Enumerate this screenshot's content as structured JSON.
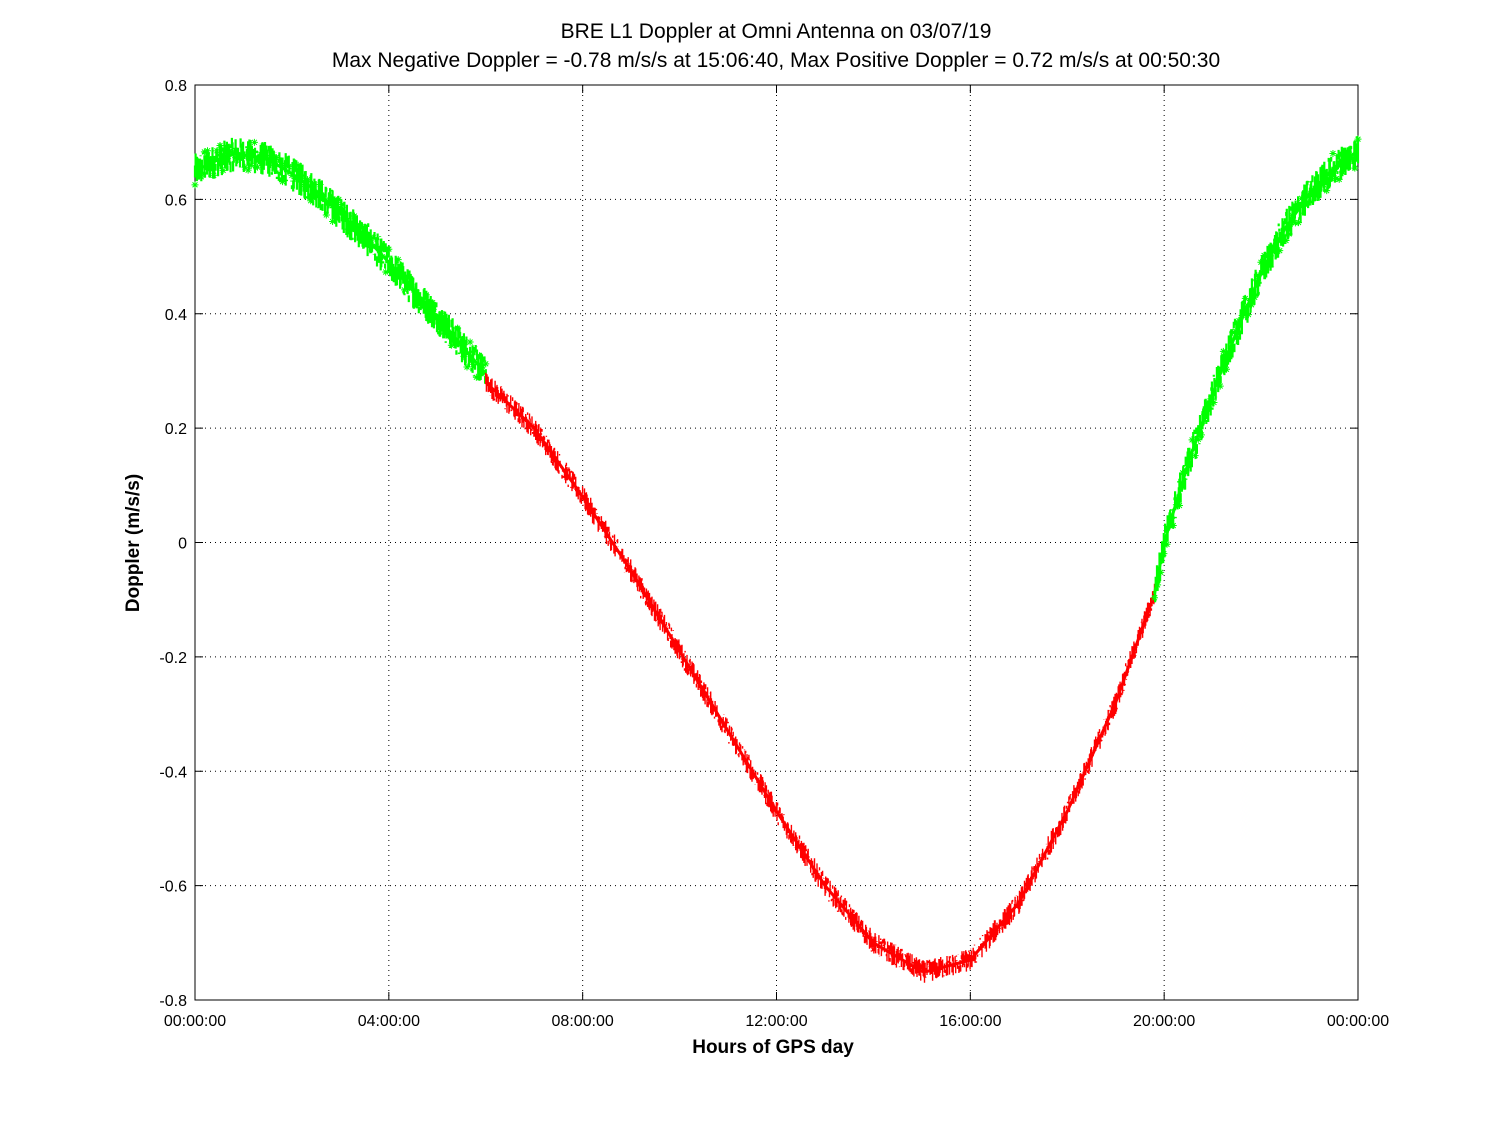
{
  "chart_data": {
    "type": "line",
    "title": "BRE  L1 Doppler at Omni Antenna on 03/07/19",
    "subtitle": "Max Negative Doppler = -0.78 m/s/s  at 15:06:40,   Max Positive Doppler = 0.72 m/s/s  at 00:50:30",
    "xlabel": "Hours of GPS day",
    "ylabel": "Doppler (m/s/s)",
    "x_unit": "hours",
    "xlim": [
      0,
      24
    ],
    "ylim": [
      -0.8,
      0.8
    ],
    "x_ticks": [
      {
        "value": 0,
        "label": "00:00:00"
      },
      {
        "value": 4,
        "label": "04:00:00"
      },
      {
        "value": 8,
        "label": "08:00:00"
      },
      {
        "value": 12,
        "label": "12:00:00"
      },
      {
        "value": 16,
        "label": "16:00:00"
      },
      {
        "value": 20,
        "label": "20:00:00"
      },
      {
        "value": 24,
        "label": "00:00:00"
      }
    ],
    "y_ticks": [
      {
        "value": 0.8,
        "label": "0.8"
      },
      {
        "value": 0.6,
        "label": "0.6"
      },
      {
        "value": 0.4,
        "label": "0.4"
      },
      {
        "value": 0.2,
        "label": "0.2"
      },
      {
        "value": 0,
        "label": "0"
      },
      {
        "value": -0.2,
        "label": "-0.2"
      },
      {
        "value": -0.4,
        "label": "-0.4"
      },
      {
        "value": -0.6,
        "label": "-0.6"
      },
      {
        "value": -0.8,
        "label": "-0.8"
      }
    ],
    "grid": true,
    "series": [
      {
        "color": "#00ff00",
        "marker": "star",
        "noise_band": 0.03,
        "x": [
          0,
          0.5,
          0.84,
          1.5,
          2,
          2.5,
          3,
          3.5,
          4,
          4.5,
          5,
          5.5,
          6
        ],
        "y": [
          0.65,
          0.67,
          0.68,
          0.67,
          0.645,
          0.615,
          0.575,
          0.535,
          0.49,
          0.44,
          0.395,
          0.345,
          0.295
        ]
      },
      {
        "color": "#ff0000",
        "marker": "line",
        "noise_band": 0.02,
        "x": [
          6,
          7,
          8,
          9,
          10,
          11,
          12,
          13,
          14,
          15,
          15.11,
          16,
          17,
          18,
          19,
          19.8
        ],
        "y": [
          0.28,
          0.2,
          0.08,
          -0.05,
          -0.19,
          -0.33,
          -0.47,
          -0.6,
          -0.7,
          -0.75,
          -0.75,
          -0.73,
          -0.63,
          -0.47,
          -0.28,
          -0.09
        ]
      },
      {
        "color": "#00ff00",
        "marker": "star",
        "noise_band": 0.03,
        "x": [
          19.8,
          20,
          20.5,
          21,
          21.5,
          22,
          22.5,
          23,
          23.5,
          24
        ],
        "y": [
          -0.09,
          0.0,
          0.14,
          0.26,
          0.37,
          0.47,
          0.55,
          0.61,
          0.655,
          0.685
        ]
      }
    ]
  }
}
